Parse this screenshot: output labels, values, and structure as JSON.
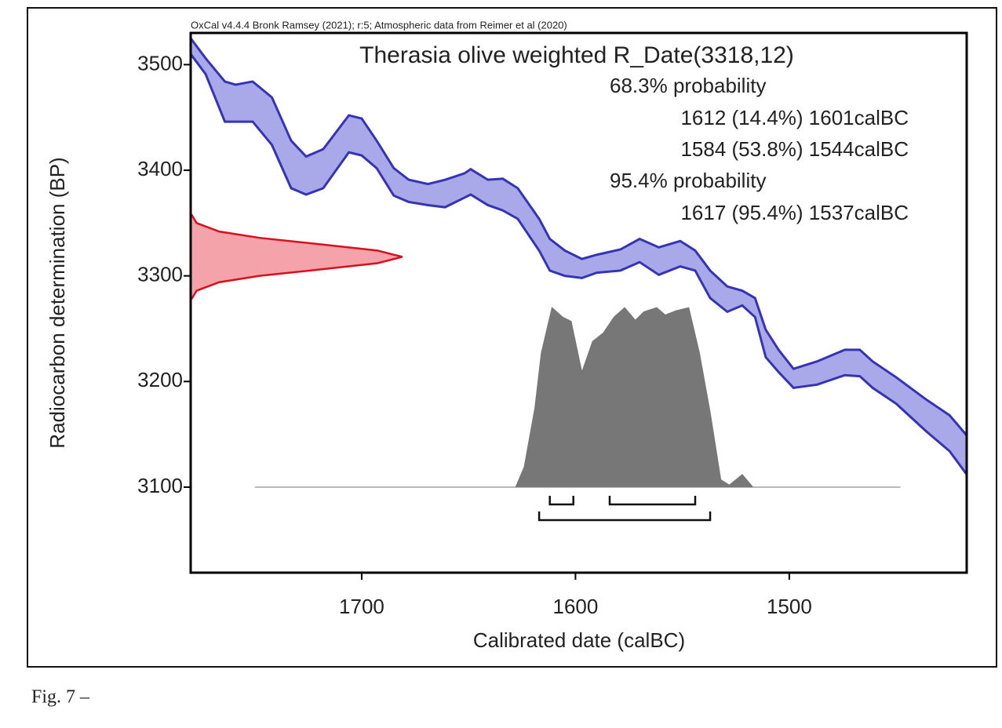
{
  "chart_data": {
    "type": "calibration",
    "header": "OxCal v4.4.4 Bronk Ramsey (2021); r:5; Atmospheric data from Reimer et al (2020)",
    "title": "Therasia olive weighted R_Date(3318,12)",
    "xlabel": "Calibrated date (calBC)",
    "ylabel": "Radiocarbon determination (BP)",
    "xlim": [
      1780,
      1417
    ],
    "ylim": [
      3019,
      3530
    ],
    "xticks": [
      1700,
      1600,
      1500
    ],
    "yticks": [
      3100,
      3200,
      3300,
      3400,
      3500
    ],
    "curve": {
      "color": "#3434b4",
      "fill": "#a9a9ea",
      "x": [
        1780,
        1773,
        1764,
        1759,
        1751,
        1742,
        1733,
        1726,
        1718,
        1706,
        1700,
        1693,
        1685,
        1678,
        1669,
        1661,
        1652,
        1649,
        1641,
        1634,
        1627,
        1617,
        1612,
        1605,
        1597,
        1590,
        1579,
        1570,
        1561,
        1551,
        1544,
        1537,
        1529,
        1522,
        1516,
        1511,
        1505,
        1498,
        1487,
        1474,
        1467,
        1461,
        1450,
        1436,
        1425,
        1417
      ],
      "upper": [
        3525,
        3506,
        3484,
        3481,
        3484,
        3469,
        3428,
        3413,
        3420,
        3452,
        3449,
        3428,
        3402,
        3391,
        3387,
        3391,
        3397,
        3401,
        3391,
        3392,
        3383,
        3354,
        3335,
        3324,
        3316,
        3320,
        3325,
        3335,
        3327,
        3333,
        3324,
        3305,
        3290,
        3286,
        3279,
        3249,
        3230,
        3212,
        3219,
        3230,
        3230,
        3219,
        3204,
        3183,
        3168,
        3149
      ],
      "lower": [
        3510,
        3491,
        3446,
        3446,
        3446,
        3424,
        3383,
        3377,
        3383,
        3417,
        3414,
        3402,
        3376,
        3370,
        3367,
        3365,
        3374,
        3377,
        3367,
        3362,
        3354,
        3324,
        3305,
        3300,
        3298,
        3303,
        3305,
        3313,
        3301,
        3309,
        3305,
        3279,
        3266,
        3272,
        3261,
        3223,
        3209,
        3194,
        3197,
        3206,
        3205,
        3194,
        3179,
        3153,
        3134,
        3112
      ]
    },
    "likelihood": {
      "color": "#d8101e",
      "fill": "#f4a3ab",
      "bp": [
        3358,
        3350,
        3342,
        3336,
        3330,
        3324,
        3318,
        3312,
        3306,
        3300,
        3294,
        3286,
        3278
      ],
      "calbc": [
        1779.6,
        1777.2,
        1766.6,
        1747.8,
        1719.9,
        1692.6,
        1681,
        1692.6,
        1719.9,
        1747.8,
        1766.6,
        1777.2,
        1779.6
      ]
    },
    "posterior": {
      "color": "#777777",
      "x": [
        1750,
        1628,
        1624,
        1619,
        1616,
        1611,
        1606,
        1602,
        1597,
        1592,
        1587,
        1582,
        1577,
        1572,
        1568,
        1562,
        1558,
        1553,
        1547,
        1542,
        1537,
        1532,
        1528,
        1522,
        1517,
        1448
      ],
      "bp": [
        3100,
        3100,
        3119,
        3175,
        3227,
        3270,
        3261,
        3257,
        3209,
        3238,
        3246,
        3261,
        3270,
        3258,
        3266,
        3270,
        3263,
        3267,
        3270,
        3227,
        3171,
        3107,
        3102,
        3112,
        3100,
        3100
      ]
    },
    "probabilities": [
      {
        "label": "68.3% probability",
        "ranges": [
          {
            "from": 1612,
            "share": "(14.4%)",
            "to": 1601,
            "unit": "calBC"
          },
          {
            "from": 1584,
            "share": "(53.8%)",
            "to": 1544,
            "unit": "calBC"
          }
        ]
      },
      {
        "label": "95.4% probability",
        "ranges": [
          {
            "from": 1617,
            "share": "(95.4%)",
            "to": 1537,
            "unit": "calBC"
          }
        ]
      }
    ]
  },
  "caption": "Fig. 7 –"
}
